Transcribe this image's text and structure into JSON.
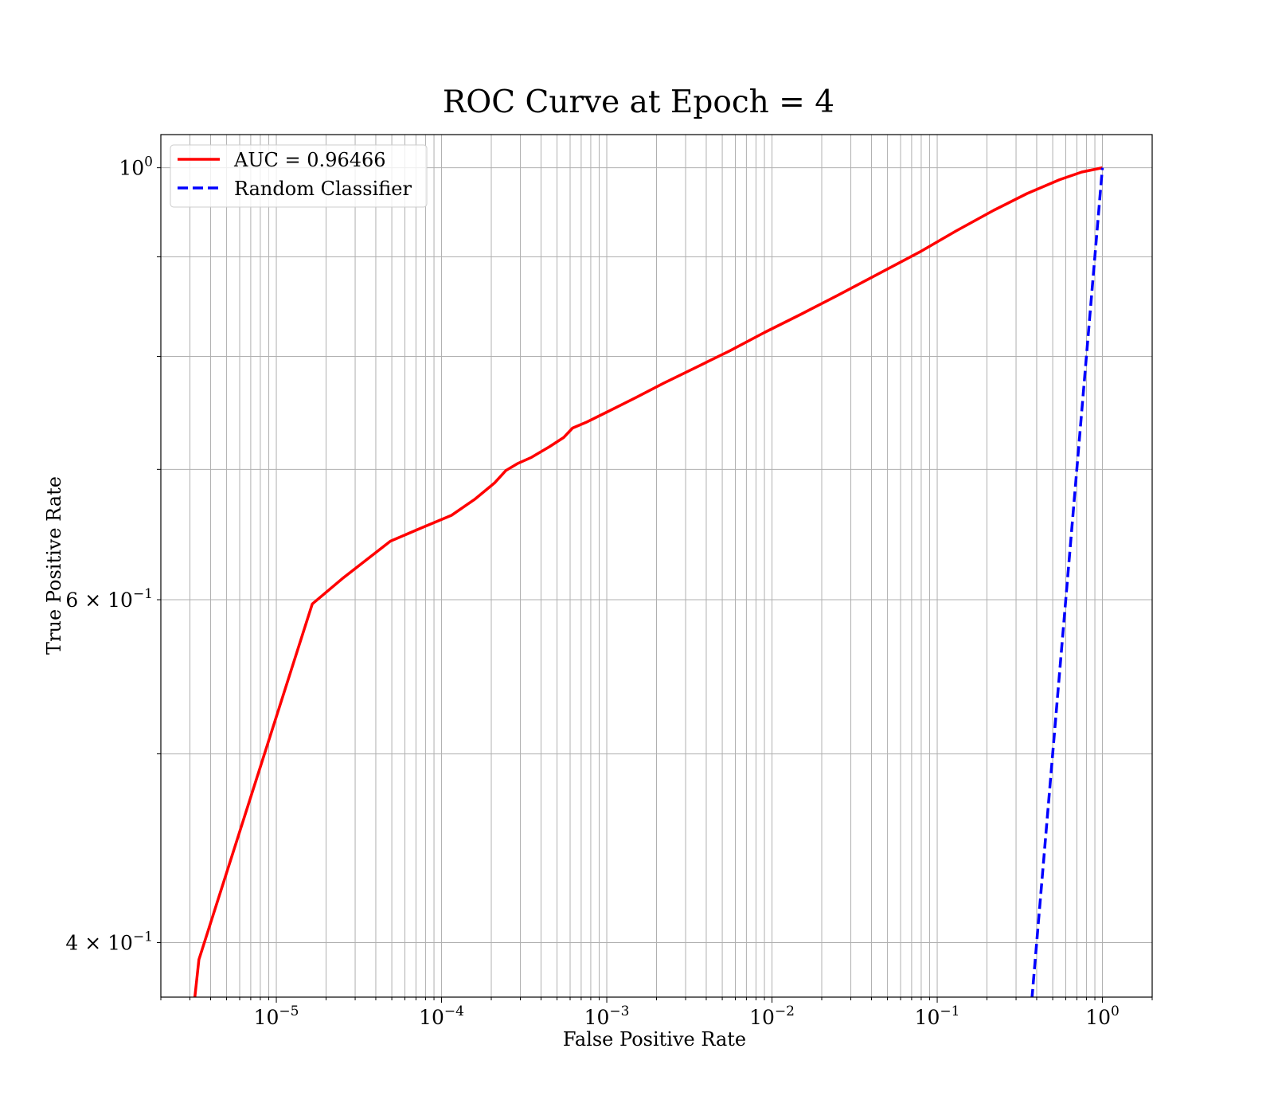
{
  "chart_data": {
    "type": "line",
    "title": "ROC Curve at Epoch = 4",
    "xlabel": "False Positive Rate",
    "ylabel": "True Positive Rate",
    "xscale": "log",
    "yscale": "log",
    "xlim": [
      2e-06,
      2
    ],
    "ylim": [
      0.375,
      1.04
    ],
    "grid": true,
    "grid_which": "both",
    "legend_position": "top-left",
    "x_ticks": [
      {
        "value": 1e-05,
        "base": "10",
        "exp": "−5"
      },
      {
        "value": 0.0001,
        "base": "10",
        "exp": "−4"
      },
      {
        "value": 0.001,
        "base": "10",
        "exp": "−3"
      },
      {
        "value": 0.01,
        "base": "10",
        "exp": "−2"
      },
      {
        "value": 0.1,
        "base": "10",
        "exp": "−1"
      },
      {
        "value": 1,
        "base": "10",
        "exp": "0"
      }
    ],
    "y_ticks": [
      {
        "value": 0.4,
        "mantissa": "4 × ",
        "base": "10",
        "exp": "−1"
      },
      {
        "value": 0.6,
        "mantissa": "6 × ",
        "base": "10",
        "exp": "−1"
      },
      {
        "value": 1.0,
        "mantissa": "",
        "base": "10",
        "exp": "0"
      }
    ],
    "series": [
      {
        "name": "AUC = 0.96466",
        "color": "#ff0000",
        "style": "solid",
        "points": [
          [
            3.2e-06,
            0.374
          ],
          [
            3.4e-06,
            0.392
          ],
          [
            1.65e-05,
            0.597
          ],
          [
            2.5e-05,
            0.615
          ],
          [
            4.9e-05,
            0.643
          ],
          [
            7.5e-05,
            0.653
          ],
          [
            0.000115,
            0.663
          ],
          [
            0.00016,
            0.676
          ],
          [
            0.00021,
            0.689
          ],
          [
            0.000245,
            0.699
          ],
          [
            0.00029,
            0.705
          ],
          [
            0.00035,
            0.71
          ],
          [
            0.00045,
            0.719
          ],
          [
            0.00055,
            0.727
          ],
          [
            0.00062,
            0.735
          ],
          [
            0.00075,
            0.74
          ],
          [
            0.001,
            0.749
          ],
          [
            0.0015,
            0.762
          ],
          [
            0.0022,
            0.775
          ],
          [
            0.0035,
            0.79
          ],
          [
            0.0055,
            0.805
          ],
          [
            0.009,
            0.823
          ],
          [
            0.015,
            0.841
          ],
          [
            0.025,
            0.86
          ],
          [
            0.045,
            0.883
          ],
          [
            0.08,
            0.906
          ],
          [
            0.13,
            0.928
          ],
          [
            0.22,
            0.951
          ],
          [
            0.35,
            0.97
          ],
          [
            0.55,
            0.986
          ],
          [
            0.75,
            0.995
          ],
          [
            1.0,
            1.0
          ]
        ]
      },
      {
        "name": "Random Classifier",
        "color": "#0000ff",
        "style": "dashed",
        "points": [
          [
            0.374,
            0.374
          ],
          [
            1.0,
            1.0
          ]
        ]
      }
    ]
  }
}
